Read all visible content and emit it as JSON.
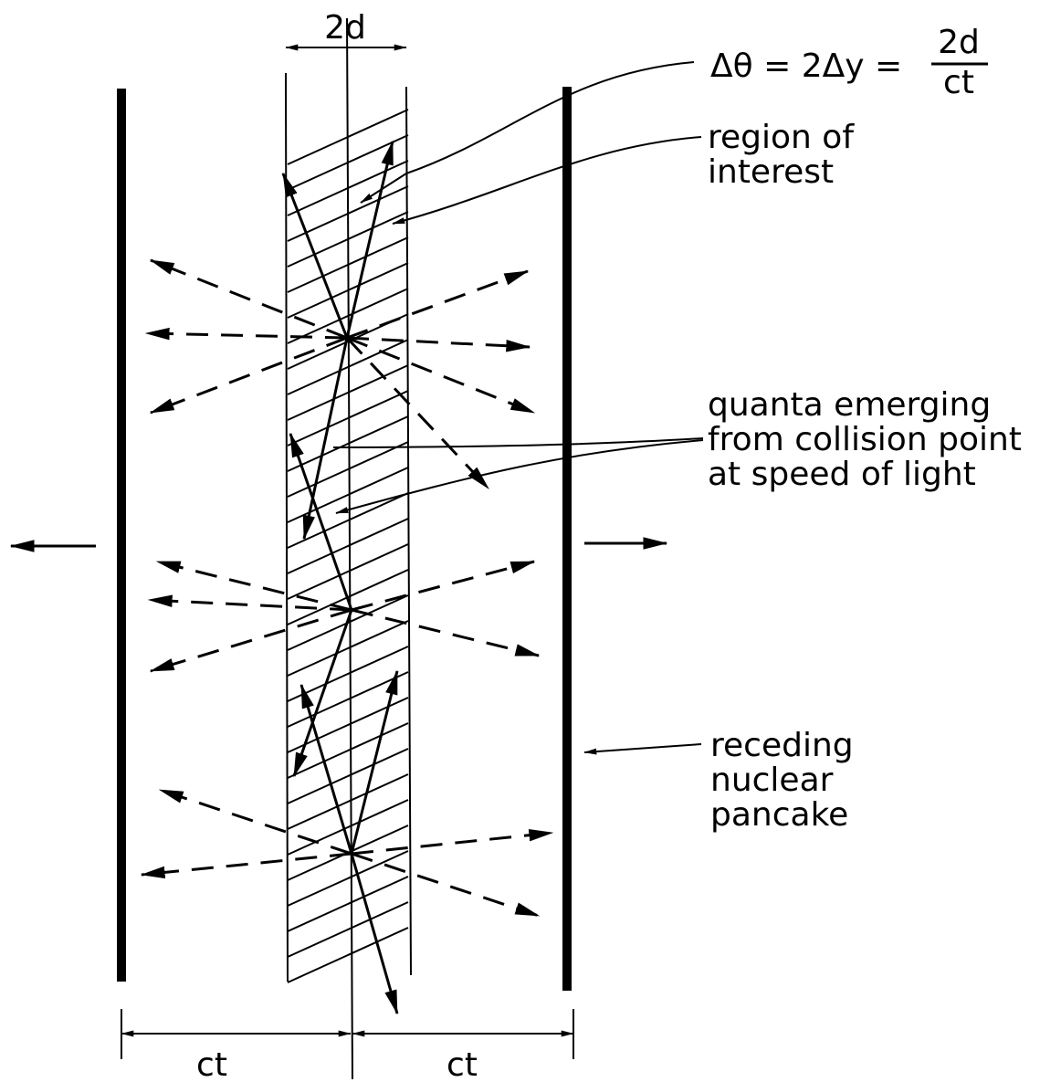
{
  "dimensions": {
    "top": "2d",
    "bottom_left": "ct",
    "bottom_right": "ct"
  },
  "formula": {
    "lhs": "Δθ = 2Δy =",
    "numerator": "2d",
    "denominator": "ct"
  },
  "labels": {
    "region": [
      "region of",
      "interest"
    ],
    "quanta": [
      "quanta emerging",
      "from collision point",
      "at speed of light"
    ],
    "pancake": [
      "receding",
      "nuclear",
      "pancake"
    ]
  }
}
